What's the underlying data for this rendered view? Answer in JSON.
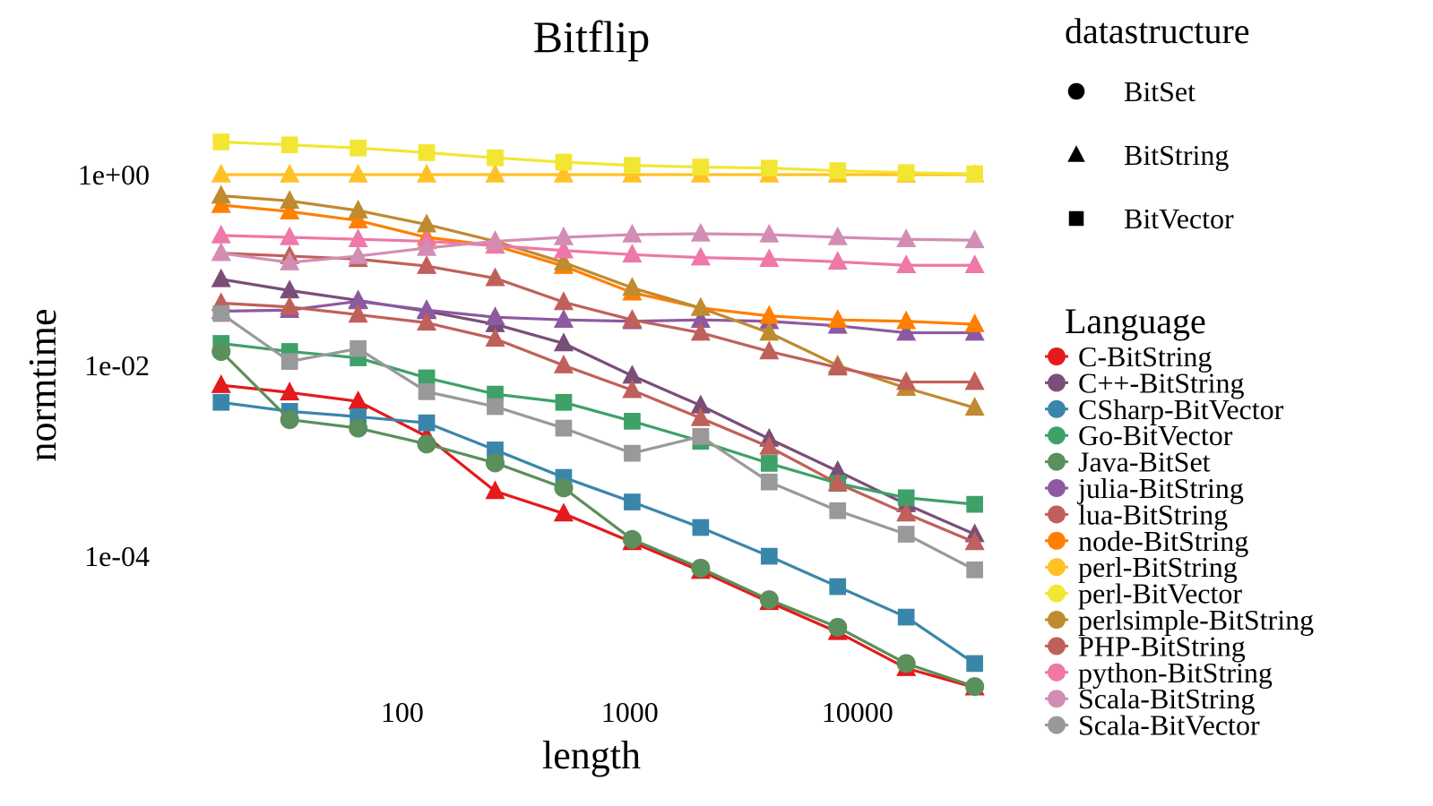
{
  "chart_data": {
    "type": "line",
    "title": "Bitflip",
    "xlabel": "length",
    "ylabel": "normtime",
    "x_scale": "log",
    "y_scale": "log",
    "xlim": [
      12,
      42000
    ],
    "ylim": [
      4e-06,
      12
    ],
    "x_ticks": [
      100,
      1000,
      10000
    ],
    "x_tick_labels": [
      "100",
      "1000",
      "10000"
    ],
    "y_ticks": [
      1,
      0.01,
      0.0001
    ],
    "y_tick_labels": [
      "1e+00",
      "1e-02",
      "1e-04"
    ],
    "grid": false,
    "x": [
      16,
      32,
      64,
      128,
      256,
      512,
      1024,
      2048,
      4096,
      8192,
      16384,
      32768
    ],
    "legend_shape": {
      "title": "datastructure",
      "items": [
        {
          "label": "BitSet",
          "shape": "circle"
        },
        {
          "label": "BitString",
          "shape": "triangle"
        },
        {
          "label": "BitVector",
          "shape": "square"
        }
      ]
    },
    "legend_color_title": "Language",
    "series": [
      {
        "name": "C-BitString",
        "shape": "triangle",
        "color": "#E41A1C",
        "values": [
          0.0062,
          0.0052,
          0.0042,
          0.0018,
          0.00048,
          0.00028,
          0.00014,
          7e-05,
          3.3e-05,
          1.6e-05,
          6.7e-06,
          4.2e-06
        ]
      },
      {
        "name": "C++-BitString",
        "shape": "triangle",
        "color": "#7A4E78",
        "values": [
          0.08,
          0.061,
          0.048,
          0.037,
          0.027,
          0.017,
          0.0078,
          0.0038,
          0.0017,
          0.00078,
          0.00035,
          0.00017
        ]
      },
      {
        "name": "CSharp-BitVector",
        "shape": "square",
        "color": "#3A86AA",
        "values": [
          0.0041,
          0.0033,
          0.0029,
          0.0025,
          0.0013,
          0.00067,
          0.00037,
          0.0002,
          0.0001,
          4.8e-05,
          2.3e-05,
          7.5e-06
        ]
      },
      {
        "name": "Go-BitVector",
        "shape": "square",
        "color": "#3DA168",
        "values": [
          0.017,
          0.014,
          0.012,
          0.0074,
          0.005,
          0.0041,
          0.0026,
          0.0016,
          0.00094,
          0.00058,
          0.00041,
          0.00035
        ]
      },
      {
        "name": "Java-BitSet",
        "shape": "circle",
        "color": "#5B8F5B",
        "values": [
          0.014,
          0.0027,
          0.0022,
          0.0015,
          0.00095,
          0.00052,
          0.00015,
          7.5e-05,
          3.5e-05,
          1.8e-05,
          7.5e-06,
          4.3e-06
        ]
      },
      {
        "name": "julia-BitString",
        "shape": "triangle",
        "color": "#8D59A0",
        "values": [
          0.037,
          0.038,
          0.047,
          0.038,
          0.032,
          0.03,
          0.029,
          0.03,
          0.029,
          0.026,
          0.022,
          0.022
        ]
      },
      {
        "name": "lua-BitString",
        "shape": "triangle",
        "color": "#C0605A",
        "values": [
          0.045,
          0.041,
          0.034,
          0.028,
          0.019,
          0.01,
          0.0055,
          0.0028,
          0.0014,
          0.00058,
          0.00028,
          0.00014
        ]
      },
      {
        "name": "node-BitString",
        "shape": "triangle",
        "color": "#FF7F00",
        "values": [
          0.48,
          0.41,
          0.33,
          0.22,
          0.18,
          0.11,
          0.058,
          0.04,
          0.033,
          0.03,
          0.029,
          0.027
        ]
      },
      {
        "name": "perl-BitString",
        "shape": "triangle",
        "color": "#FFC125",
        "values": [
          1.0,
          1.0,
          1.0,
          1.0,
          1.0,
          1.0,
          1.0,
          1.0,
          1.0,
          1.0,
          1.0,
          1.0
        ]
      },
      {
        "name": "perl-BitVector",
        "shape": "square",
        "color": "#F2E633",
        "values": [
          2.2,
          2.05,
          1.9,
          1.7,
          1.5,
          1.35,
          1.25,
          1.2,
          1.17,
          1.1,
          1.05,
          1.02
        ]
      },
      {
        "name": "perlsimple-BitString",
        "shape": "triangle",
        "color": "#C08A2E",
        "values": [
          0.6,
          0.53,
          0.42,
          0.3,
          0.2,
          0.12,
          0.065,
          0.04,
          0.022,
          0.01,
          0.0058,
          0.0036
        ]
      },
      {
        "name": "PHP-BitString",
        "shape": "triangle",
        "color": "#C0605A",
        "values": [
          0.15,
          0.14,
          0.13,
          0.11,
          0.082,
          0.046,
          0.03,
          0.022,
          0.014,
          0.0095,
          0.0067,
          0.0067
        ]
      },
      {
        "name": "python-BitString",
        "shape": "triangle",
        "color": "#EE78A8",
        "values": [
          0.23,
          0.22,
          0.21,
          0.2,
          0.18,
          0.16,
          0.145,
          0.135,
          0.13,
          0.122,
          0.112,
          0.112
        ]
      },
      {
        "name": "Scala-BitString",
        "shape": "triangle",
        "color": "#D38DB5",
        "values": [
          0.15,
          0.12,
          0.14,
          0.17,
          0.2,
          0.22,
          0.235,
          0.24,
          0.235,
          0.22,
          0.21,
          0.205
        ]
      },
      {
        "name": "Scala-BitVector",
        "shape": "square",
        "color": "#999999",
        "values": [
          0.035,
          0.011,
          0.015,
          0.0053,
          0.0037,
          0.0022,
          0.0012,
          0.0018,
          0.0006,
          0.0003,
          0.00017,
          7.2e-05
        ]
      }
    ]
  }
}
